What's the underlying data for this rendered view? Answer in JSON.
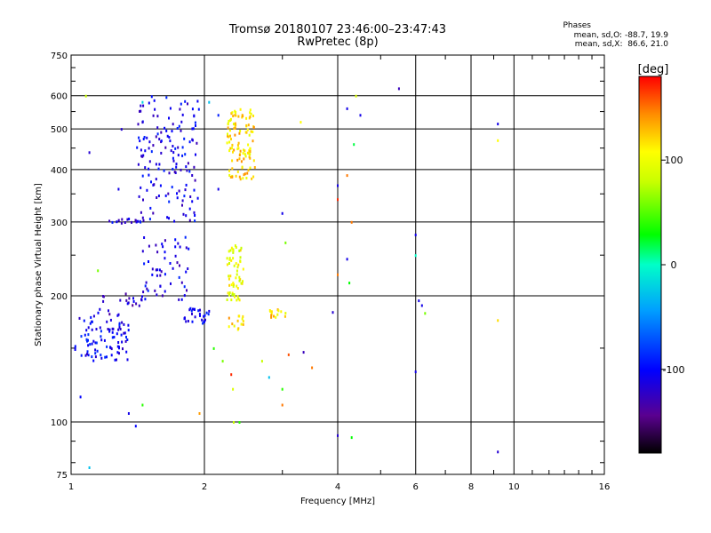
{
  "header": {
    "title": "Tromsø 20180107 23:46:00–23:47:43",
    "subtitle": "RwPretec (8p)",
    "phases_title": "Phases",
    "phases_line1": "mean, sd,O: -88.7, 19.9",
    "phases_line2": "mean, sd,X:  86.6, 21.0"
  },
  "colorbar": {
    "unit_label": "[deg]",
    "ticks": [
      "100",
      "0",
      "-100"
    ],
    "range": [
      -180,
      180
    ]
  },
  "chart_data": {
    "type": "scatter",
    "xlabel": "Frequency [MHz]",
    "ylabel": "Stationary phase Virtual Height [km]",
    "x_scale": "log",
    "y_scale": "log",
    "xlim": [
      1,
      16
    ],
    "ylim": [
      75,
      750
    ],
    "x_ticks": [
      1,
      2,
      4,
      6,
      8,
      10,
      16
    ],
    "x_tick_labels": [
      "1",
      "2",
      "4",
      "6",
      "8",
      "10",
      "16"
    ],
    "y_ticks": [
      75,
      100,
      200,
      300,
      400,
      500,
      600,
      750
    ],
    "y_tick_labels": [
      "75",
      "100",
      "200",
      "300",
      "400",
      "500",
      "600",
      "750"
    ],
    "grid": true,
    "clusters": [
      {
        "name": "",
        "x_range": [
          1.02,
          1.35
        ],
        "y_range": [
          140,
          180
        ],
        "phase": -105,
        "count": 90
      },
      {
        "name": "",
        "x_range": [
          1.15,
          1.45
        ],
        "y_range": [
          180,
          205
        ],
        "phase": -125,
        "count": 22
      },
      {
        "name": "",
        "x_range": [
          1.45,
          1.85
        ],
        "y_range": [
          195,
          280
        ],
        "phase": -110,
        "count": 55
      },
      {
        "name": "",
        "x_range": [
          1.8,
          2.05
        ],
        "y_range": [
          172,
          188
        ],
        "phase": -105,
        "count": 28
      },
      {
        "name": "",
        "x_range": [
          1.4,
          1.95
        ],
        "y_range": [
          300,
          600
        ],
        "phase": -110,
        "count": 150
      },
      {
        "name": "",
        "x_range": [
          1.22,
          1.45
        ],
        "y_range": [
          298,
          306
        ],
        "phase": -110,
        "count": 14
      },
      {
        "name": "",
        "x_range": [
          2.25,
          2.6
        ],
        "y_range": [
          380,
          560
        ],
        "phase": 120,
        "count": 110
      },
      {
        "name": "",
        "x_range": [
          2.25,
          2.45
        ],
        "y_range": [
          195,
          265
        ],
        "phase": 100,
        "count": 60
      },
      {
        "name": "",
        "x_range": [
          2.25,
          2.45
        ],
        "y_range": [
          165,
          180
        ],
        "phase": 120,
        "count": 14
      },
      {
        "name": "",
        "x_range": [
          2.8,
          3.1
        ],
        "y_range": [
          178,
          186
        ],
        "phase": 120,
        "count": 14
      }
    ],
    "scattered_points": [
      {
        "x": 1.05,
        "y": 115,
        "phase": -100
      },
      {
        "x": 1.1,
        "y": 78,
        "phase": -30
      },
      {
        "x": 1.08,
        "y": 600,
        "phase": 80
      },
      {
        "x": 1.1,
        "y": 440,
        "phase": -120
      },
      {
        "x": 1.15,
        "y": 230,
        "phase": 60
      },
      {
        "x": 1.3,
        "y": 500,
        "phase": -120
      },
      {
        "x": 1.28,
        "y": 360,
        "phase": -110
      },
      {
        "x": 1.35,
        "y": 105,
        "phase": -110
      },
      {
        "x": 1.45,
        "y": 110,
        "phase": 40
      },
      {
        "x": 1.4,
        "y": 98,
        "phase": -100
      },
      {
        "x": 1.45,
        "y": 580,
        "phase": -20
      },
      {
        "x": 1.45,
        "y": 520,
        "phase": -120
      },
      {
        "x": 1.95,
        "y": 105,
        "phase": 140
      },
      {
        "x": 2.05,
        "y": 580,
        "phase": -30
      },
      {
        "x": 2.15,
        "y": 540,
        "phase": -90
      },
      {
        "x": 2.15,
        "y": 360,
        "phase": -110
      },
      {
        "x": 2.1,
        "y": 150,
        "phase": 40
      },
      {
        "x": 2.2,
        "y": 140,
        "phase": 60
      },
      {
        "x": 2.3,
        "y": 130,
        "phase": 170
      },
      {
        "x": 2.32,
        "y": 120,
        "phase": 90
      },
      {
        "x": 2.33,
        "y": 100,
        "phase": 80
      },
      {
        "x": 2.4,
        "y": 100,
        "phase": 40
      },
      {
        "x": 2.7,
        "y": 140,
        "phase": 80
      },
      {
        "x": 2.8,
        "y": 128,
        "phase": -30
      },
      {
        "x": 3.0,
        "y": 120,
        "phase": 40
      },
      {
        "x": 3.0,
        "y": 110,
        "phase": 150
      },
      {
        "x": 3.0,
        "y": 315,
        "phase": -110
      },
      {
        "x": 3.05,
        "y": 268,
        "phase": 60
      },
      {
        "x": 3.1,
        "y": 145,
        "phase": 160
      },
      {
        "x": 3.3,
        "y": 520,
        "phase": 110
      },
      {
        "x": 3.35,
        "y": 147,
        "phase": -130
      },
      {
        "x": 3.5,
        "y": 135,
        "phase": 150
      },
      {
        "x": 3.9,
        "y": 183,
        "phase": -120
      },
      {
        "x": 4.0,
        "y": 367,
        "phase": -110
      },
      {
        "x": 4.0,
        "y": 340,
        "phase": 170
      },
      {
        "x": 4.0,
        "y": 225,
        "phase": 150
      },
      {
        "x": 4.0,
        "y": 93,
        "phase": -120
      },
      {
        "x": 4.2,
        "y": 560,
        "phase": -110
      },
      {
        "x": 4.2,
        "y": 388,
        "phase": 150
      },
      {
        "x": 4.2,
        "y": 245,
        "phase": -110
      },
      {
        "x": 4.25,
        "y": 215,
        "phase": 30
      },
      {
        "x": 4.3,
        "y": 300,
        "phase": 150
      },
      {
        "x": 4.3,
        "y": 92,
        "phase": 30
      },
      {
        "x": 4.35,
        "y": 460,
        "phase": 20
      },
      {
        "x": 4.4,
        "y": 600,
        "phase": 90
      },
      {
        "x": 4.5,
        "y": 540,
        "phase": -110
      },
      {
        "x": 5.5,
        "y": 625,
        "phase": -130
      },
      {
        "x": 6.0,
        "y": 280,
        "phase": -110
      },
      {
        "x": 6.0,
        "y": 250,
        "phase": 0
      },
      {
        "x": 6.0,
        "y": 132,
        "phase": -110
      },
      {
        "x": 6.1,
        "y": 195,
        "phase": -110
      },
      {
        "x": 6.2,
        "y": 190,
        "phase": -110
      },
      {
        "x": 6.3,
        "y": 182,
        "phase": 60
      },
      {
        "x": 9.2,
        "y": 515,
        "phase": -110
      },
      {
        "x": 9.2,
        "y": 470,
        "phase": 110
      },
      {
        "x": 9.2,
        "y": 175,
        "phase": 120
      },
      {
        "x": 9.2,
        "y": 85,
        "phase": -120
      }
    ]
  }
}
